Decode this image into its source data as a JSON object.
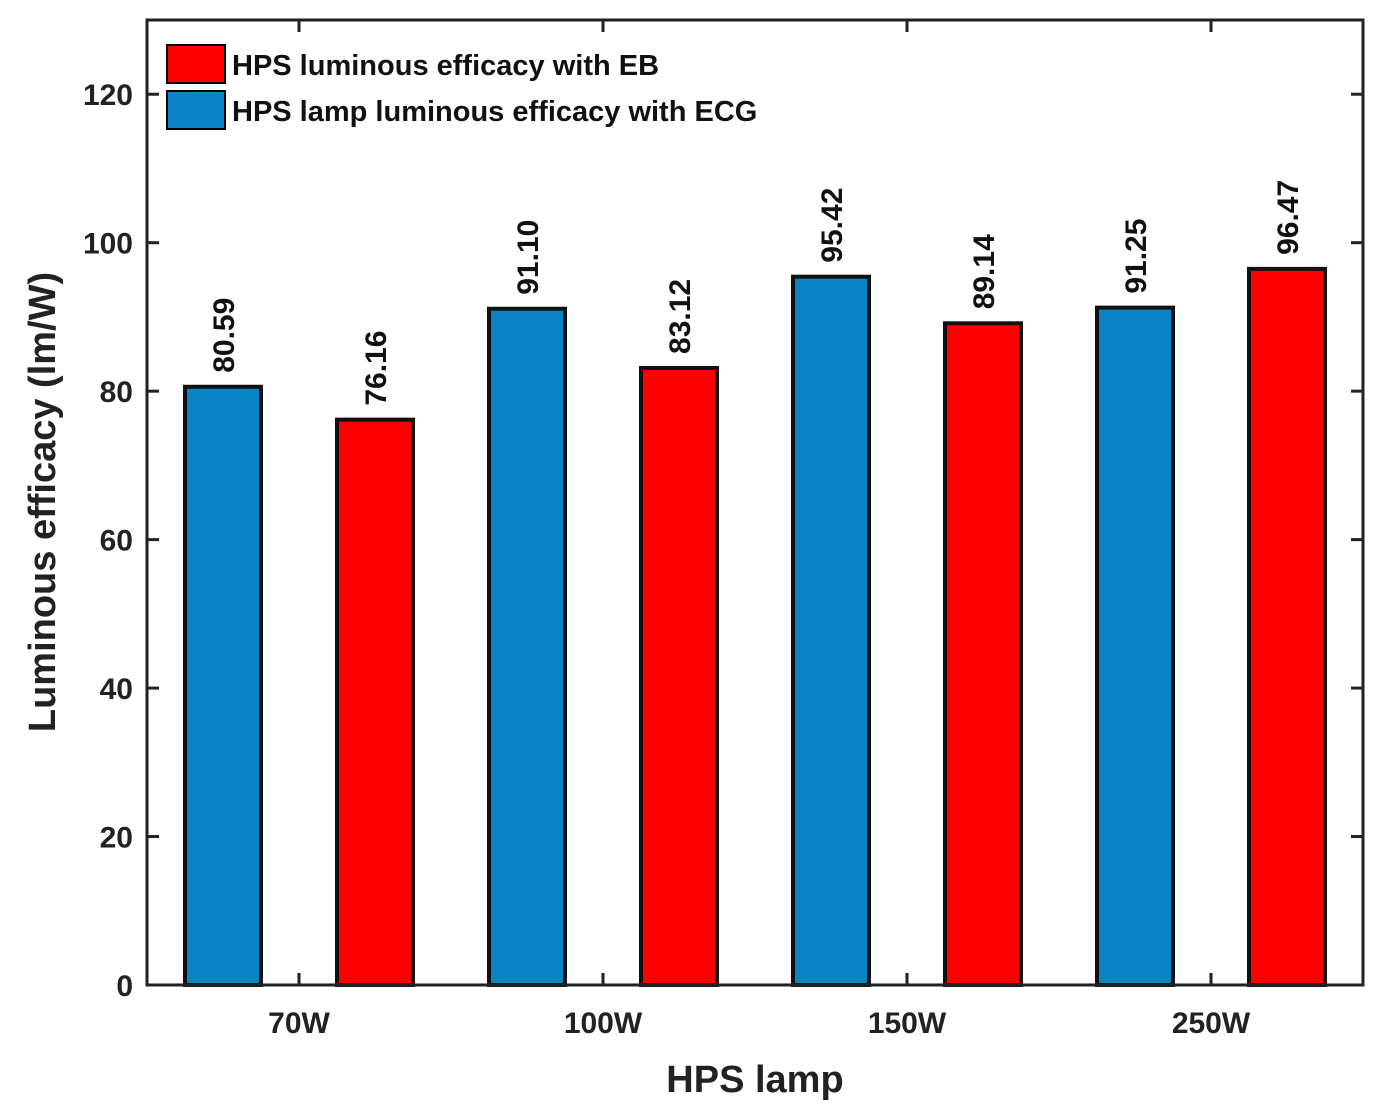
{
  "chart_data": {
    "type": "bar",
    "title": "",
    "xlabel": "HPS lamp",
    "ylabel": "Luminous efficacy (lm/W)",
    "ylim": [
      0,
      130
    ],
    "yticks": [
      "0",
      "20",
      "40",
      "60",
      "80",
      "100",
      "120"
    ],
    "categories": [
      "70W",
      "100W",
      "150W",
      "250W"
    ],
    "series": [
      {
        "name": "HPS lamp luminous efficacy with ECG",
        "color": "#0b84c6",
        "values": [
          80.59,
          91.1,
          95.42,
          91.25
        ],
        "labels": [
          "80.59",
          "91.10",
          "95.42",
          "91.25"
        ]
      },
      {
        "name": "HPS luminous efficacy with EB",
        "color": "#ff0000",
        "values": [
          76.16,
          83.12,
          89.14,
          96.47
        ],
        "labels": [
          "76.16",
          "83.12",
          "89.14",
          "96.47"
        ]
      }
    ],
    "legend": {
      "position": "top-left",
      "entries": [
        {
          "label": "HPS luminous efficacy with EB",
          "color": "#ff0000"
        },
        {
          "label": "HPS lamp luminous efficacy with ECG",
          "color": "#0b84c6"
        }
      ]
    },
    "grid": false
  }
}
